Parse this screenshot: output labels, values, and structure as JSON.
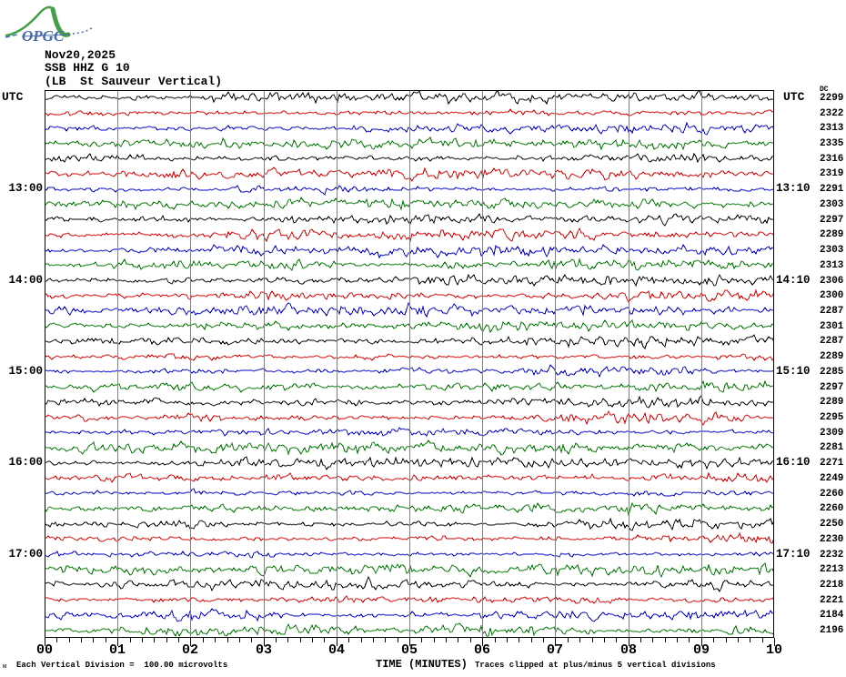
{
  "logo": {
    "text": "OPGC"
  },
  "header": {
    "date": "Nov20,2025",
    "station": "SSB HHZ G 10",
    "location": "(LB  St Sauveur Vertical)"
  },
  "labels": {
    "utc_left": "UTC",
    "utc_right": "UTC",
    "dc_header": "DC"
  },
  "x_axis": {
    "title": "TIME (MINUTES)"
  },
  "footer": {
    "left_note": "Each Vertical Division =  100.00 microvolts",
    "right_note": "Traces clipped at plus/minus 5 vertical divisions",
    "corner_mark": "м"
  },
  "colors": {
    "black": "#000000",
    "red": "#dd0000",
    "blue": "#0000cc",
    "green": "#007700",
    "grid": "#808080",
    "logo_green": "#44a048",
    "logo_blue": "#4668ad"
  },
  "chart_data": {
    "type": "line",
    "subtype": "helicorder-seismogram",
    "title": "SSB HHZ G 10 (LB  St Sauveur Vertical) Nov20,2025",
    "xlabel": "TIME (MINUTES)",
    "xlim_minutes": [
      0,
      10
    ],
    "x_tick_labels": [
      "00",
      "01",
      "02",
      "03",
      "04",
      "05",
      "06",
      "07",
      "08",
      "09",
      "10"
    ],
    "minor_ticks_per_minute": 5,
    "row_duration_minutes": 10,
    "amplitude_note": "Each Vertical Division =  100.00 microvolts",
    "clip_note": "Traces clipped at plus/minus 5 vertical divisions",
    "rows": [
      {
        "i": 1,
        "color": "black",
        "dc": 2299,
        "utc_left": "",
        "utc_right": ""
      },
      {
        "i": 2,
        "color": "red",
        "dc": 2322,
        "utc_left": "",
        "utc_right": ""
      },
      {
        "i": 3,
        "color": "blue",
        "dc": 2313,
        "utc_left": "",
        "utc_right": ""
      },
      {
        "i": 4,
        "color": "green",
        "dc": 2335,
        "utc_left": "",
        "utc_right": ""
      },
      {
        "i": 5,
        "color": "black",
        "dc": 2316,
        "utc_left": "",
        "utc_right": ""
      },
      {
        "i": 6,
        "color": "red",
        "dc": 2319,
        "utc_left": "",
        "utc_right": ""
      },
      {
        "i": 7,
        "color": "blue",
        "dc": 2291,
        "utc_left": "13:00",
        "utc_right": "13:10"
      },
      {
        "i": 8,
        "color": "green",
        "dc": 2303,
        "utc_left": "",
        "utc_right": ""
      },
      {
        "i": 9,
        "color": "black",
        "dc": 2297,
        "utc_left": "",
        "utc_right": ""
      },
      {
        "i": 10,
        "color": "red",
        "dc": 2289,
        "utc_left": "",
        "utc_right": ""
      },
      {
        "i": 11,
        "color": "blue",
        "dc": 2303,
        "utc_left": "",
        "utc_right": ""
      },
      {
        "i": 12,
        "color": "green",
        "dc": 2313,
        "utc_left": "",
        "utc_right": ""
      },
      {
        "i": 13,
        "color": "black",
        "dc": 2306,
        "utc_left": "14:00",
        "utc_right": "14:10"
      },
      {
        "i": 14,
        "color": "red",
        "dc": 2300,
        "utc_left": "",
        "utc_right": ""
      },
      {
        "i": 15,
        "color": "blue",
        "dc": 2287,
        "utc_left": "",
        "utc_right": ""
      },
      {
        "i": 16,
        "color": "green",
        "dc": 2301,
        "utc_left": "",
        "utc_right": ""
      },
      {
        "i": 17,
        "color": "black",
        "dc": 2287,
        "utc_left": "",
        "utc_right": ""
      },
      {
        "i": 18,
        "color": "red",
        "dc": 2289,
        "utc_left": "",
        "utc_right": ""
      },
      {
        "i": 19,
        "color": "blue",
        "dc": 2285,
        "utc_left": "15:00",
        "utc_right": "15:10"
      },
      {
        "i": 20,
        "color": "green",
        "dc": 2297,
        "utc_left": "",
        "utc_right": ""
      },
      {
        "i": 21,
        "color": "black",
        "dc": 2289,
        "utc_left": "",
        "utc_right": ""
      },
      {
        "i": 22,
        "color": "red",
        "dc": 2295,
        "utc_left": "",
        "utc_right": ""
      },
      {
        "i": 23,
        "color": "blue",
        "dc": 2309,
        "utc_left": "",
        "utc_right": ""
      },
      {
        "i": 24,
        "color": "green",
        "dc": 2281,
        "utc_left": "",
        "utc_right": ""
      },
      {
        "i": 25,
        "color": "black",
        "dc": 2271,
        "utc_left": "16:00",
        "utc_right": "16:10"
      },
      {
        "i": 26,
        "color": "red",
        "dc": 2249,
        "utc_left": "",
        "utc_right": ""
      },
      {
        "i": 27,
        "color": "blue",
        "dc": 2260,
        "utc_left": "",
        "utc_right": ""
      },
      {
        "i": 28,
        "color": "green",
        "dc": 2260,
        "utc_left": "",
        "utc_right": ""
      },
      {
        "i": 29,
        "color": "black",
        "dc": 2250,
        "utc_left": "",
        "utc_right": ""
      },
      {
        "i": 30,
        "color": "red",
        "dc": 2230,
        "utc_left": "",
        "utc_right": ""
      },
      {
        "i": 31,
        "color": "blue",
        "dc": 2232,
        "utc_left": "17:00",
        "utc_right": "17:10"
      },
      {
        "i": 32,
        "color": "green",
        "dc": 2213,
        "utc_left": "",
        "utc_right": ""
      },
      {
        "i": 33,
        "color": "black",
        "dc": 2218,
        "utc_left": "",
        "utc_right": ""
      },
      {
        "i": 34,
        "color": "red",
        "dc": 2221,
        "utc_left": "",
        "utc_right": ""
      },
      {
        "i": 35,
        "color": "blue",
        "dc": 2184,
        "utc_left": "",
        "utc_right": ""
      },
      {
        "i": 36,
        "color": "green",
        "dc": 2196,
        "utc_left": "",
        "utc_right": ""
      }
    ]
  }
}
